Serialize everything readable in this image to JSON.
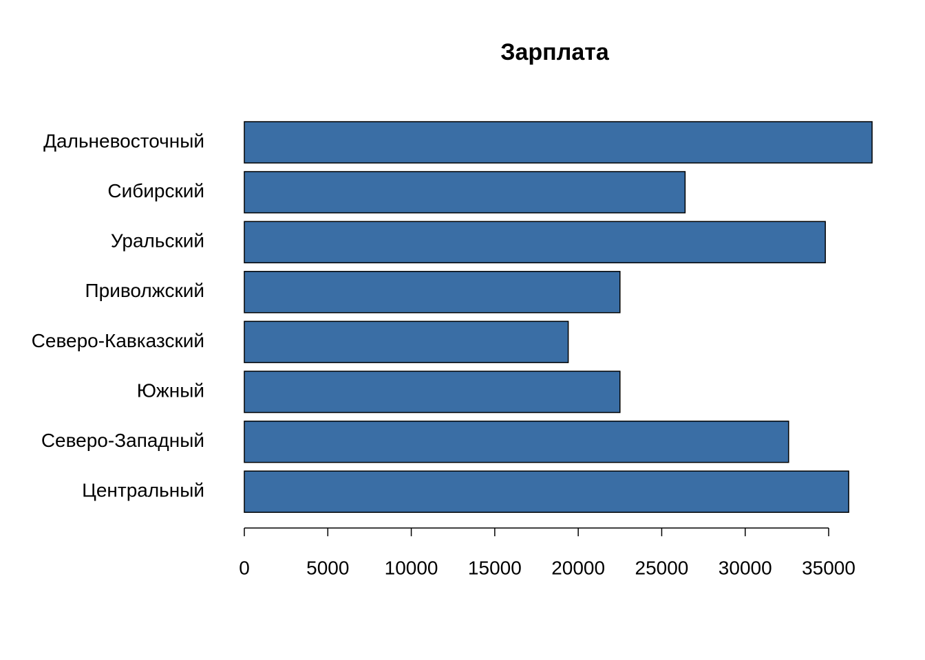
{
  "chart_data": {
    "type": "barh",
    "title": "Зарплата",
    "categories": [
      "Дальневосточный",
      "Сибирский",
      "Уральский",
      "Приволжский",
      "Северо-Кавказский",
      "Южный",
      "Северо-Западный",
      "Центральный"
    ],
    "values": [
      37600,
      26400,
      34800,
      22500,
      19400,
      22500,
      32600,
      36200
    ],
    "color": "#3a6ea5",
    "xlim": [
      0,
      38000
    ],
    "xticks": [
      0,
      5000,
      10000,
      15000,
      20000,
      25000,
      30000,
      35000
    ]
  }
}
